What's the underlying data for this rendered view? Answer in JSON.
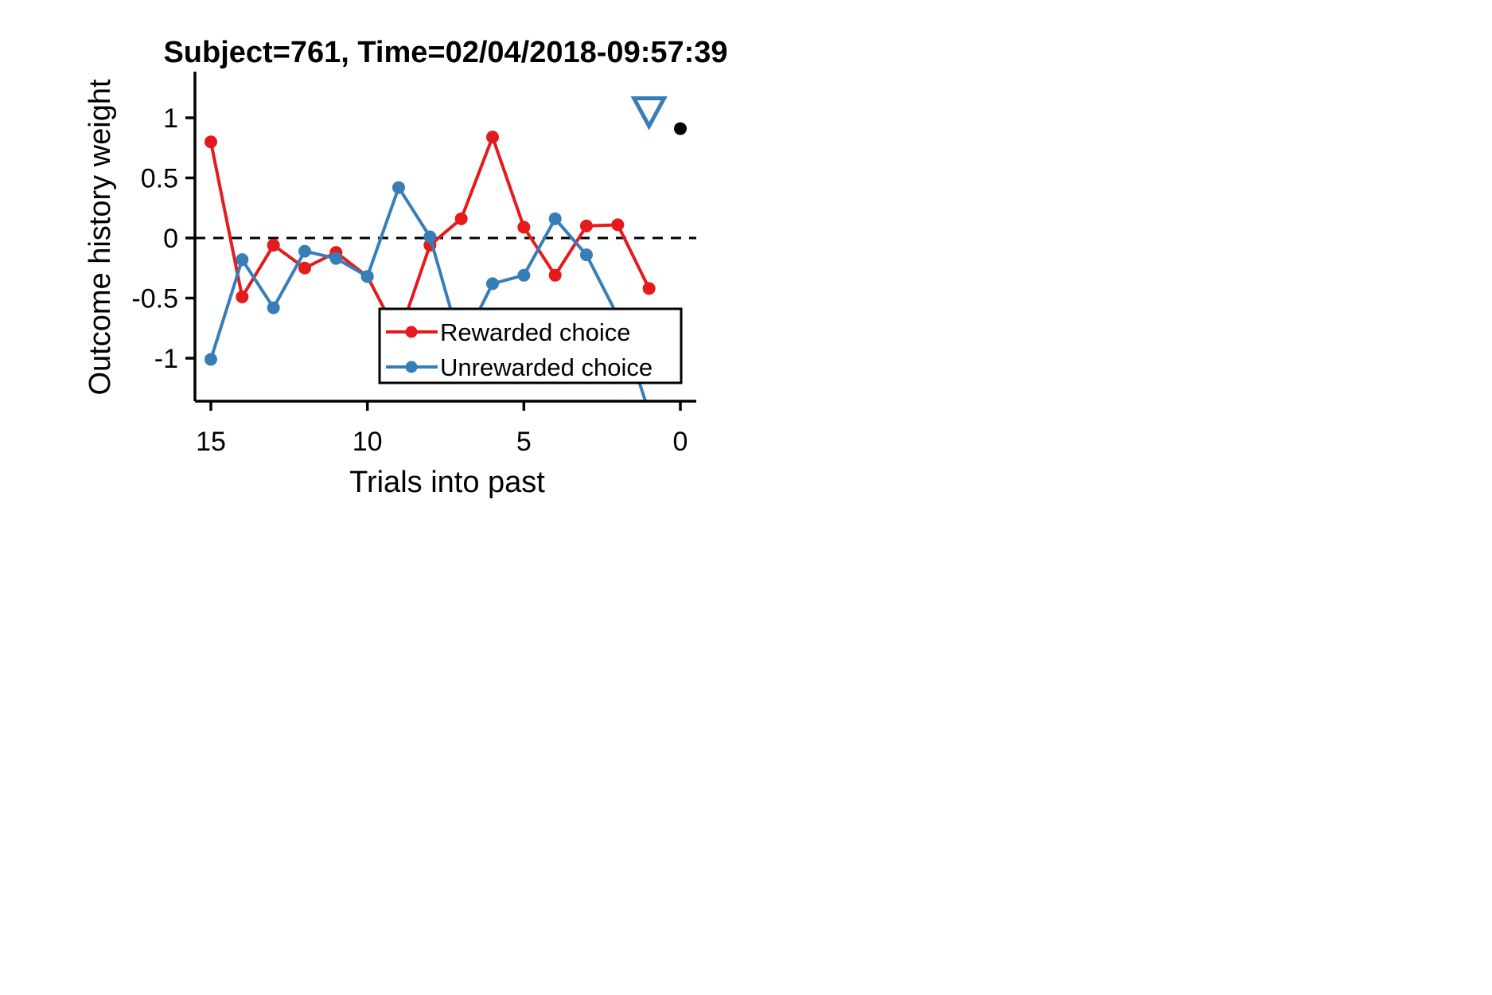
{
  "chart_data": {
    "type": "line",
    "title": "Subject=761, Time=02/04/2018-09:57:39",
    "xlabel": "Trials into past",
    "ylabel": "Outcome history weight",
    "xlim": [
      15.5,
      -0.5
    ],
    "ylim": [
      -1.35,
      1.35
    ],
    "xticks": [
      15,
      10,
      5,
      0
    ],
    "yticks": [
      1,
      0.5,
      0,
      -0.5,
      -1
    ],
    "xtick_labels": [
      "15",
      "10",
      "5",
      "0"
    ],
    "ytick_labels": [
      "1",
      "0.5",
      "0",
      "-0.5",
      "-1"
    ],
    "reference_line": {
      "y": 0,
      "style": "dashed"
    },
    "legend_position": "lower-right",
    "series": [
      {
        "name": "Rewarded choice",
        "color": "#e41a1c",
        "x": [
          15,
          14,
          13,
          12,
          11,
          10,
          9,
          8,
          7,
          6,
          5,
          4,
          3,
          2,
          1
        ],
        "y": [
          0.8,
          -0.49,
          -0.06,
          -0.25,
          -0.12,
          -0.32,
          -0.82,
          -0.06,
          0.16,
          0.84,
          0.09,
          -0.31,
          0.1,
          0.11,
          -0.42
        ]
      },
      {
        "name": "Unrewarded choice",
        "color": "#377eb8",
        "x": [
          15,
          14,
          13,
          12,
          11,
          10,
          9,
          8,
          7,
          6,
          5,
          4,
          3,
          2,
          1
        ],
        "y": [
          -1.01,
          -0.18,
          -0.58,
          -0.11,
          -0.17,
          -0.32,
          0.42,
          0.01,
          -0.9,
          -0.38,
          -0.31,
          0.16,
          -0.14,
          -0.65,
          -1.45
        ]
      }
    ],
    "markers": [
      {
        "name": "triangle-marker",
        "shape": "triangle-down-open",
        "color": "#377eb8",
        "x": 1,
        "y": 1.05
      },
      {
        "name": "dot-marker",
        "shape": "dot",
        "color": "#000000",
        "x": 0,
        "y": 0.91
      }
    ]
  }
}
